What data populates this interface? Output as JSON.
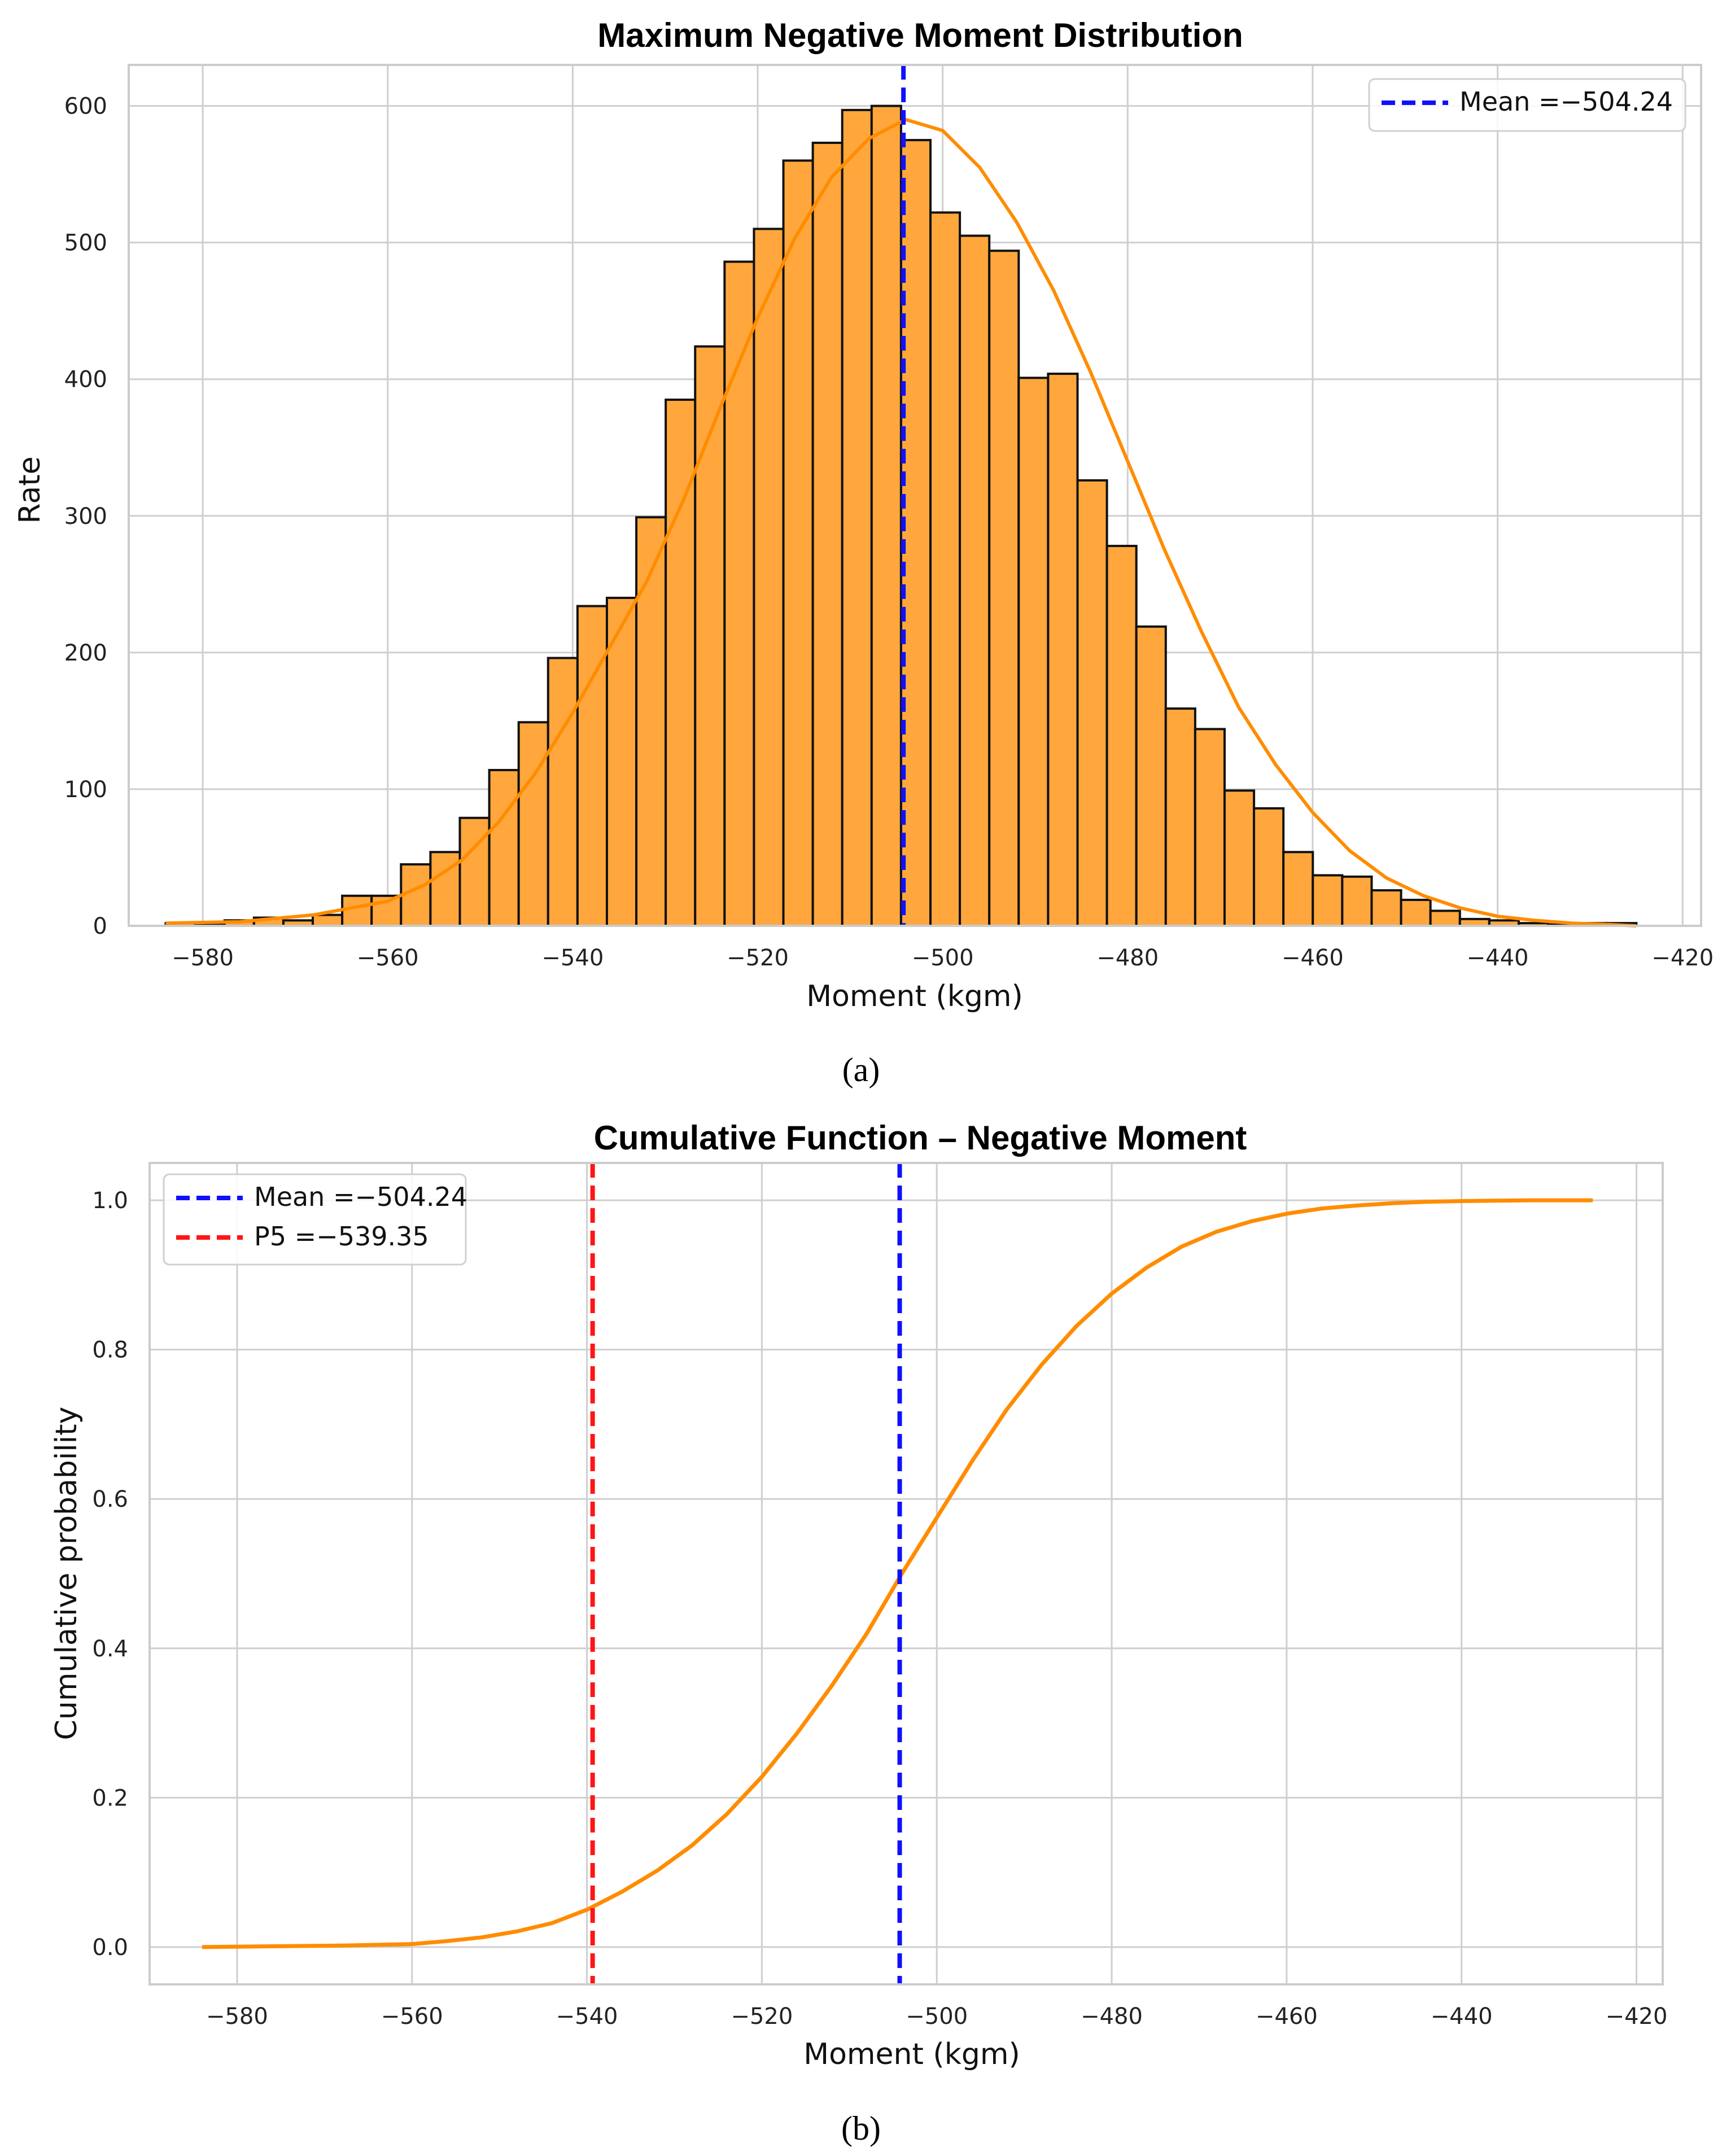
{
  "chart_data": [
    {
      "type": "bar",
      "panel_label": "(a)",
      "title": "Maximum Negative Moment Distribution",
      "xlabel": "Moment (kgm)",
      "ylabel": "Rate",
      "xlim": [
        -588,
        -418
      ],
      "ylim": [
        0,
        630
      ],
      "xticks": [
        -580,
        -560,
        -540,
        -520,
        -500,
        -480,
        -460,
        -440,
        -420
      ],
      "xtick_labels": [
        "−580",
        "−560",
        "−540",
        "−520",
        "−500",
        "−480",
        "−460",
        "−440",
        "−420"
      ],
      "yticks": [
        0,
        100,
        200,
        300,
        400,
        500,
        600
      ],
      "ytick_labels": [
        "0",
        "100",
        "200",
        "300",
        "400",
        "500",
        "600"
      ],
      "grid": true,
      "legend_position": "top-right",
      "bin_start": -584.0,
      "bin_width": 3.18,
      "values": [
        2,
        1,
        4,
        6,
        4,
        8,
        22,
        22,
        45,
        54,
        79,
        114,
        149,
        196,
        234,
        240,
        299,
        385,
        424,
        486,
        510,
        560,
        573,
        597,
        600,
        575,
        522,
        505,
        494,
        401,
        404,
        326,
        278,
        219,
        159,
        144,
        99,
        86,
        54,
        37,
        36,
        26,
        19,
        11,
        5,
        4,
        2,
        1,
        2,
        2
      ],
      "kde_x": [
        -584,
        -576,
        -568,
        -560,
        -556,
        -552,
        -548,
        -544,
        -540,
        -536,
        -532,
        -528,
        -524,
        -520,
        -516,
        -512,
        -508,
        -504,
        -500,
        -496,
        -492,
        -488,
        -484,
        -480,
        -476,
        -472,
        -468,
        -464,
        -460,
        -456,
        -452,
        -448,
        -444,
        -440,
        -436,
        -432,
        -428,
        -425
      ],
      "kde_y": [
        2,
        3,
        8,
        18,
        30,
        48,
        76,
        112,
        156,
        204,
        252,
        312,
        380,
        445,
        503,
        548,
        576,
        590,
        582,
        555,
        515,
        465,
        405,
        340,
        275,
        215,
        160,
        118,
        83,
        55,
        35,
        22,
        13,
        7,
        4,
        2,
        1,
        0
      ],
      "series": [
        {
          "name": "Mean =−504.24",
          "value": -504.24,
          "color": "#1010ff",
          "style": "dashed"
        }
      ],
      "colors": {
        "bars": "#ffa73c",
        "bar_edge": "#111111",
        "kde": "#ff8c00",
        "grid": "#cfcfcf",
        "frame": "#cccccc"
      }
    },
    {
      "type": "line",
      "panel_label": "(b)",
      "title": "Cumulative Function – Negative Moment",
      "xlabel": "Moment (kgm)",
      "ylabel": "Cumulative probability",
      "xlim": [
        -590,
        -417
      ],
      "ylim": [
        -0.05,
        1.05
      ],
      "xticks": [
        -580,
        -560,
        -540,
        -520,
        -500,
        -480,
        -460,
        -440,
        -420
      ],
      "xtick_labels": [
        "−580",
        "−560",
        "−540",
        "−520",
        "−500",
        "−480",
        "−460",
        "−440",
        "−420"
      ],
      "yticks": [
        0.0,
        0.2,
        0.4,
        0.6,
        0.8,
        1.0
      ],
      "ytick_labels": [
        "0.0",
        "0.2",
        "0.4",
        "0.6",
        "0.8",
        "1.0"
      ],
      "grid": true,
      "legend_position": "top-left",
      "x": [
        -584,
        -576,
        -568,
        -560,
        -556,
        -552,
        -548,
        -544,
        -540,
        -536,
        -532,
        -528,
        -524,
        -520,
        -516,
        -512,
        -508,
        -504,
        -500,
        -496,
        -492,
        -488,
        -484,
        -480,
        -476,
        -472,
        -468,
        -464,
        -460,
        -456,
        -452,
        -448,
        -444,
        -440,
        -436,
        -432,
        -428,
        -425
      ],
      "y": [
        0.0,
        0.001,
        0.002,
        0.004,
        0.008,
        0.013,
        0.021,
        0.032,
        0.05,
        0.074,
        0.102,
        0.136,
        0.178,
        0.228,
        0.286,
        0.35,
        0.42,
        0.5,
        0.575,
        0.65,
        0.72,
        0.78,
        0.832,
        0.875,
        0.91,
        0.938,
        0.958,
        0.972,
        0.982,
        0.989,
        0.993,
        0.996,
        0.998,
        0.999,
        0.9995,
        1.0,
        1.0,
        1.0
      ],
      "series": [
        {
          "name": "Mean =−504.24",
          "value": -504.24,
          "color": "#1010ff",
          "style": "dashed"
        },
        {
          "name": "P5 =−539.35",
          "value": -539.35,
          "color": "#ff1515",
          "style": "dashed"
        }
      ],
      "colors": {
        "line": "#ff8c00",
        "grid": "#cfcfcf",
        "frame": "#cccccc"
      }
    }
  ]
}
